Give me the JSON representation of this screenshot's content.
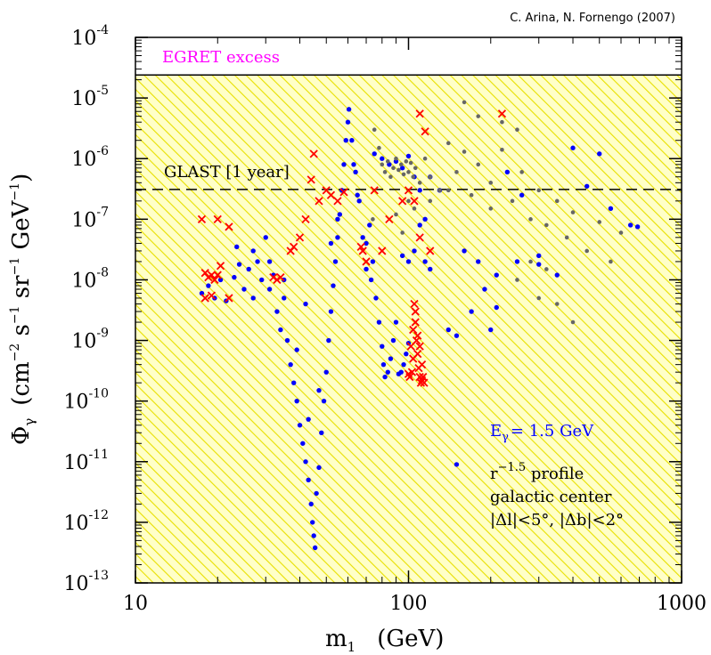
{
  "credit": "C. Arina, N. Fornengo (2007)",
  "chart_data": {
    "type": "scatter",
    "xscale": "log",
    "yscale": "log",
    "xlim": [
      10,
      1000
    ],
    "ylim": [
      1e-13,
      0.0001
    ],
    "xlabel": {
      "main": "m",
      "sub": "1",
      "unit": "(GeV)"
    },
    "ylabel": {
      "symbol": "Φ",
      "sub": "γ",
      "unit_a": "(cm",
      "unit_b": " s",
      "unit_c": " sr",
      "unit_d": " GeV",
      "unit_e": ")",
      "e1": "−2",
      "e2": "−1",
      "e3": "−1",
      "e4": "−1"
    },
    "x_ticks": [
      {
        "value": 10,
        "label": "10"
      },
      {
        "value": 100,
        "label": "100"
      },
      {
        "value": 1000,
        "label": "1000"
      }
    ],
    "y_ticks": [
      {
        "value": 0.0001,
        "base": "10",
        "exp": "-4"
      },
      {
        "value": 1e-05,
        "base": "10",
        "exp": "-5"
      },
      {
        "value": 1e-06,
        "base": "10",
        "exp": "-6"
      },
      {
        "value": 1e-07,
        "base": "10",
        "exp": "-7"
      },
      {
        "value": 1e-08,
        "base": "10",
        "exp": "-8"
      },
      {
        "value": 1e-09,
        "base": "10",
        "exp": "-9"
      },
      {
        "value": 1e-10,
        "base": "10",
        "exp": "-10"
      },
      {
        "value": 1e-11,
        "base": "10",
        "exp": "-11"
      },
      {
        "value": 1e-12,
        "base": "10",
        "exp": "-12"
      },
      {
        "value": 1e-13,
        "base": "10",
        "exp": "-13"
      }
    ],
    "regions": [
      {
        "label": "EGRET excess",
        "color": "#ff00ff",
        "y_boundary": 2.4e-05
      }
    ],
    "reference_lines": [
      {
        "label": "GLAST [1 year]",
        "y": 3.1e-07,
        "style": "dashed"
      }
    ],
    "annotations": {
      "energy": {
        "main": "E",
        "sub": "γ",
        "rest": "= 1.5 GeV",
        "color": "#0000ff"
      },
      "profile": {
        "r": "r",
        "exp": "−1.5",
        "rest": " profile"
      },
      "center": "galactic center",
      "window": "|Δl|<5°, |Δb|<2°"
    },
    "hatch_colors": {
      "fill": "#ffffc8",
      "line": "#e8e000"
    },
    "series": [
      {
        "marker": "dot",
        "color": "#0000ff",
        "points": [
          [
            17.5,
            6e-09
          ],
          [
            18.5,
            8e-09
          ],
          [
            19.5,
            5e-09
          ],
          [
            20.5,
            1e-08
          ],
          [
            21.5,
            4.5e-09
          ],
          [
            23,
            1.1e-08
          ],
          [
            23.5,
            3.5e-08
          ],
          [
            25,
            7e-09
          ],
          [
            26,
            1.5e-08
          ],
          [
            27,
            5e-09
          ],
          [
            28,
            2e-08
          ],
          [
            29,
            1e-08
          ],
          [
            30,
            5e-08
          ],
          [
            31,
            7e-09
          ],
          [
            32,
            1.2e-08
          ],
          [
            33,
            3e-09
          ],
          [
            34,
            1.5e-09
          ],
          [
            35,
            5e-09
          ],
          [
            36,
            1e-09
          ],
          [
            37,
            4e-10
          ],
          [
            38,
            2e-10
          ],
          [
            39,
            1e-10
          ],
          [
            40,
            4e-11
          ],
          [
            41,
            2e-11
          ],
          [
            42,
            1e-11
          ],
          [
            43,
            5e-12
          ],
          [
            44,
            2e-12
          ],
          [
            44.5,
            1e-12
          ],
          [
            45,
            6e-13
          ],
          [
            45.5,
            3.8e-13
          ],
          [
            46,
            3e-12
          ],
          [
            47,
            8e-12
          ],
          [
            48,
            3e-11
          ],
          [
            49,
            1e-10
          ],
          [
            50,
            3e-10
          ],
          [
            51,
            1e-09
          ],
          [
            52,
            3e-09
          ],
          [
            53,
            8e-09
          ],
          [
            54,
            2e-08
          ],
          [
            55,
            5e-08
          ],
          [
            56,
            1.2e-07
          ],
          [
            57,
            3e-07
          ],
          [
            58,
            8e-07
          ],
          [
            59,
            2e-06
          ],
          [
            60,
            4e-06
          ],
          [
            60.5,
            6.5e-06
          ],
          [
            62,
            2e-06
          ],
          [
            64,
            6e-07
          ],
          [
            66,
            2e-07
          ],
          [
            68,
            5e-08
          ],
          [
            70,
            1.5e-08
          ],
          [
            72,
            8e-08
          ],
          [
            74,
            2e-08
          ],
          [
            76,
            5e-09
          ],
          [
            78,
            2e-09
          ],
          [
            80,
            8e-10
          ],
          [
            81,
            4e-10
          ],
          [
            82,
            2.5e-10
          ],
          [
            84,
            3e-10
          ],
          [
            86,
            5e-10
          ],
          [
            88,
            1e-09
          ],
          [
            90,
            2e-09
          ],
          [
            92,
            2.8e-10
          ],
          [
            94,
            3e-10
          ],
          [
            96,
            4e-10
          ],
          [
            98,
            6e-10
          ],
          [
            100,
            9e-10
          ],
          [
            75,
            1.2e-06
          ],
          [
            80,
            1e-06
          ],
          [
            85,
            8e-07
          ],
          [
            90,
            9e-07
          ],
          [
            95,
            7e-07
          ],
          [
            100,
            1.1e-06
          ],
          [
            105,
            5e-07
          ],
          [
            110,
            3e-07
          ],
          [
            115,
            2e-08
          ],
          [
            120,
            1.5e-08
          ],
          [
            130,
            3e-07
          ],
          [
            140,
            1.5e-09
          ],
          [
            150,
            1.2e-09
          ],
          [
            150,
            9e-12
          ],
          [
            180,
            2e-08
          ],
          [
            200,
            1.5e-09
          ],
          [
            210,
            3.5e-09
          ],
          [
            250,
            2e-08
          ],
          [
            300,
            1.8e-08
          ],
          [
            350,
            1.2e-08
          ],
          [
            400,
            1.5e-06
          ],
          [
            450,
            3.5e-07
          ],
          [
            500,
            1.2e-06
          ],
          [
            550,
            1.5e-07
          ],
          [
            650,
            8e-08
          ],
          [
            690,
            7.5e-08
          ],
          [
            300,
            2.5e-08
          ],
          [
            260,
            2.5e-07
          ],
          [
            230,
            6e-07
          ],
          [
            210,
            1.2e-08
          ],
          [
            160,
            3e-08
          ],
          [
            170,
            3e-09
          ],
          [
            190,
            7e-09
          ],
          [
            120,
            5e-07
          ],
          [
            115,
            1e-07
          ],
          [
            110,
            8e-08
          ],
          [
            105,
            3e-08
          ],
          [
            100,
            2e-08
          ],
          [
            95,
            2.5e-08
          ],
          [
            24,
            1.8e-08
          ],
          [
            27,
            3e-08
          ],
          [
            31,
            2e-08
          ],
          [
            35,
            1e-08
          ],
          [
            42,
            4e-09
          ],
          [
            39,
            7e-10
          ],
          [
            43,
            5e-11
          ],
          [
            47,
            1.5e-10
          ],
          [
            52,
            4e-08
          ],
          [
            55,
            1e-07
          ],
          [
            63,
            8e-07
          ],
          [
            65,
            2.5e-07
          ],
          [
            70,
            4e-08
          ],
          [
            73,
            1e-08
          ]
        ]
      },
      {
        "marker": "dot",
        "color": "#666666",
        "points": [
          [
            80,
            8e-07
          ],
          [
            82,
            6e-07
          ],
          [
            84,
            9e-07
          ],
          [
            86,
            5e-07
          ],
          [
            88,
            7e-07
          ],
          [
            90,
            1e-06
          ],
          [
            92,
            6.5e-07
          ],
          [
            94,
            8e-07
          ],
          [
            96,
            5.5e-07
          ],
          [
            98,
            9e-07
          ],
          [
            100,
            6e-07
          ],
          [
            102,
            8.5e-07
          ],
          [
            104,
            5e-07
          ],
          [
            106,
            7e-07
          ],
          [
            110,
            4e-07
          ],
          [
            115,
            1e-06
          ],
          [
            120,
            5e-07
          ],
          [
            130,
            3e-07
          ],
          [
            140,
            1.8e-06
          ],
          [
            150,
            6e-07
          ],
          [
            160,
            1.3e-06
          ],
          [
            170,
            2.5e-07
          ],
          [
            180,
            8e-07
          ],
          [
            200,
            4e-07
          ],
          [
            220,
            1.4e-06
          ],
          [
            240,
            2e-07
          ],
          [
            260,
            6e-07
          ],
          [
            280,
            1e-07
          ],
          [
            300,
            3e-07
          ],
          [
            320,
            8e-08
          ],
          [
            350,
            2e-07
          ],
          [
            380,
            5e-08
          ],
          [
            400,
            1.3e-07
          ],
          [
            450,
            3e-08
          ],
          [
            500,
            9e-08
          ],
          [
            550,
            2e-08
          ],
          [
            600,
            6e-08
          ],
          [
            180,
            5e-06
          ],
          [
            160,
            8.5e-06
          ],
          [
            220,
            4e-06
          ],
          [
            250,
            3e-06
          ],
          [
            200,
            1.5e-07
          ],
          [
            140,
            3e-07
          ],
          [
            75,
            3e-06
          ],
          [
            78,
            1.5e-06
          ],
          [
            74,
            1e-07
          ],
          [
            90,
            1.2e-07
          ],
          [
            95,
            6e-08
          ],
          [
            100,
            2e-07
          ],
          [
            105,
            1.5e-07
          ],
          [
            120,
            2e-07
          ],
          [
            400,
            2e-09
          ],
          [
            350,
            4e-09
          ],
          [
            300,
            5e-09
          ],
          [
            280,
            2e-08
          ],
          [
            320,
            1.5e-08
          ],
          [
            250,
            1e-08
          ]
        ]
      },
      {
        "marker": "cross",
        "color": "#ff0000",
        "points": [
          [
            17.5,
            1e-07
          ],
          [
            18,
            1.3e-08
          ],
          [
            18.5,
            1.1e-08
          ],
          [
            19,
            1.2e-08
          ],
          [
            19.5,
            1e-08
          ],
          [
            20,
            1e-07
          ],
          [
            20,
            1.2e-08
          ],
          [
            18,
            5e-09
          ],
          [
            19,
            5.5e-09
          ],
          [
            20.5,
            1.7e-08
          ],
          [
            22,
            7.5e-08
          ],
          [
            22,
            5e-09
          ],
          [
            32,
            1.1e-08
          ],
          [
            33,
            1e-08
          ],
          [
            34,
            1.1e-08
          ],
          [
            37,
            3e-08
          ],
          [
            38,
            3.5e-08
          ],
          [
            40,
            5e-08
          ],
          [
            42,
            1e-07
          ],
          [
            44,
            4.5e-07
          ],
          [
            45,
            1.2e-06
          ],
          [
            47,
            2e-07
          ],
          [
            50,
            3e-07
          ],
          [
            52,
            2.5e-07
          ],
          [
            55,
            2e-07
          ],
          [
            58,
            2.8e-07
          ],
          [
            67,
            3.5e-08
          ],
          [
            68,
            3e-08
          ],
          [
            70,
            2e-08
          ],
          [
            75,
            3e-07
          ],
          [
            80,
            3e-08
          ],
          [
            85,
            1e-07
          ],
          [
            95,
            2e-07
          ],
          [
            100,
            3e-07
          ],
          [
            105,
            2e-07
          ],
          [
            110,
            5.5e-06
          ],
          [
            110,
            5e-08
          ],
          [
            115,
            2.8e-06
          ],
          [
            120,
            3e-08
          ],
          [
            220,
            5.5e-06
          ],
          [
            105,
            4e-09
          ],
          [
            106,
            2e-09
          ],
          [
            107,
            1e-09
          ],
          [
            108,
            6e-10
          ],
          [
            109,
            3.5e-10
          ],
          [
            110,
            2.5e-10
          ],
          [
            111,
            2e-10
          ],
          [
            112,
            2.2e-10
          ],
          [
            104,
            5e-10
          ],
          [
            103,
            3e-10
          ],
          [
            101,
            2.5e-10
          ],
          [
            100,
            2.8e-10
          ],
          [
            102,
            8e-10
          ],
          [
            104,
            1.5e-09
          ],
          [
            106,
            3e-09
          ],
          [
            108,
            1.2e-09
          ],
          [
            110,
            8e-10
          ],
          [
            112,
            4e-10
          ],
          [
            113,
            2.5e-10
          ],
          [
            114,
            2e-10
          ]
        ]
      }
    ]
  }
}
